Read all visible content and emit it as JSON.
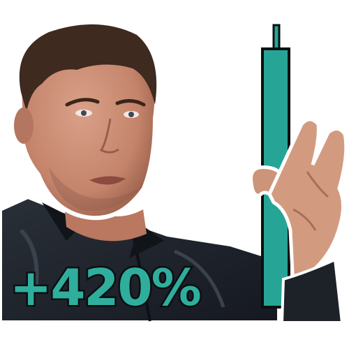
{
  "stat": {
    "value": "+420%"
  },
  "colors": {
    "candle": "#26a596",
    "outline": "#0b0f10",
    "text_fill": "#2fae9e",
    "jacket": "#1d2128",
    "skin": "#c98d74",
    "hair": "#3e2a1f"
  },
  "icons": {
    "candle": "candlestick-bar-icon"
  }
}
